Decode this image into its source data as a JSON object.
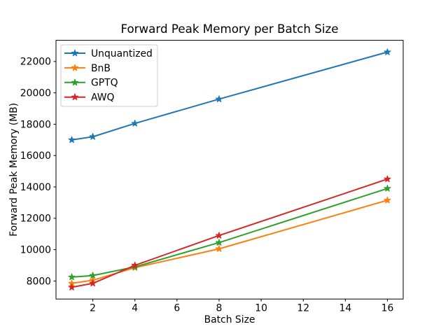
{
  "figure": {
    "title": "Forward Peak Memory per Batch Size",
    "xlabel": "Batch Size",
    "ylabel": "Forward Peak Memory (MB)"
  },
  "chart_data": {
    "type": "line",
    "title": "Forward Peak Memory per Batch Size",
    "xlabel": "Batch Size",
    "ylabel": "Forward Peak Memory (MB)",
    "x": [
      1,
      2,
      4,
      8,
      16
    ],
    "series": [
      {
        "name": "Unquantized",
        "color": "#1f77b4",
        "marker": "star",
        "values": [
          17000,
          17200,
          18050,
          19600,
          22600
        ]
      },
      {
        "name": "BnB",
        "color": "#ff7f0e",
        "marker": "star",
        "values": [
          7850,
          8050,
          8850,
          10050,
          13150
        ]
      },
      {
        "name": "GPTQ",
        "color": "#2ca02c",
        "marker": "star",
        "values": [
          8250,
          8350,
          8900,
          10450,
          13900
        ]
      },
      {
        "name": "AWQ",
        "color": "#d62728",
        "marker": "star",
        "values": [
          7600,
          7850,
          9000,
          10900,
          14500
        ]
      }
    ],
    "xticks": [
      2,
      4,
      6,
      8,
      10,
      12,
      14,
      16
    ],
    "yticks": [
      8000,
      10000,
      12000,
      14000,
      16000,
      18000,
      20000,
      22000
    ],
    "xlim": [
      0.25,
      16.75
    ],
    "ylim": [
      6850,
      23350
    ],
    "grid": false,
    "legend_position": "upper left",
    "legend_labels": [
      "Unquantized",
      "BnB",
      "GPTQ",
      "AWQ"
    ]
  }
}
